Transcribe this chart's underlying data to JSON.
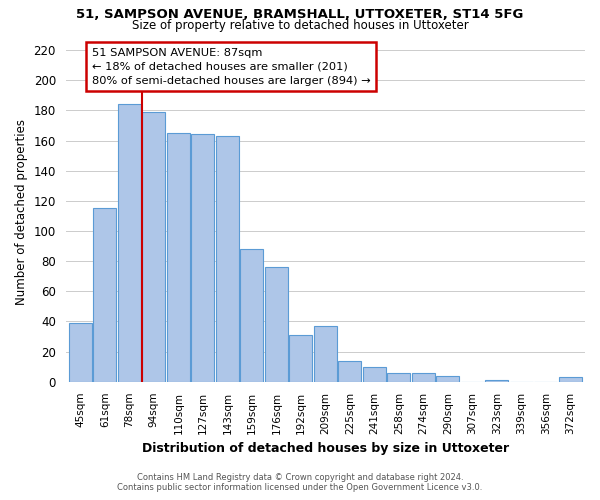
{
  "title1": "51, SAMPSON AVENUE, BRAMSHALL, UTTOXETER, ST14 5FG",
  "title2": "Size of property relative to detached houses in Uttoxeter",
  "xlabel": "Distribution of detached houses by size in Uttoxeter",
  "ylabel": "Number of detached properties",
  "bar_labels": [
    "45sqm",
    "61sqm",
    "78sqm",
    "94sqm",
    "110sqm",
    "127sqm",
    "143sqm",
    "159sqm",
    "176sqm",
    "192sqm",
    "209sqm",
    "225sqm",
    "241sqm",
    "258sqm",
    "274sqm",
    "290sqm",
    "307sqm",
    "323sqm",
    "339sqm",
    "356sqm",
    "372sqm"
  ],
  "bar_values": [
    39,
    115,
    184,
    179,
    165,
    164,
    163,
    88,
    76,
    31,
    37,
    14,
    10,
    6,
    6,
    4,
    0,
    1,
    0,
    0,
    3
  ],
  "bar_color": "#aec6e8",
  "bar_edge_color": "#5b9bd5",
  "annotation_text1": "51 SAMPSON AVENUE: 87sqm",
  "annotation_text2": "← 18% of detached houses are smaller (201)",
  "annotation_text3": "80% of semi-detached houses are larger (894) →",
  "annotation_box_color": "#ffffff",
  "annotation_box_edge": "#cc0000",
  "line_color": "#cc0000",
  "ylim": [
    0,
    225
  ],
  "yticks": [
    0,
    20,
    40,
    60,
    80,
    100,
    120,
    140,
    160,
    180,
    200,
    220
  ],
  "footer1": "Contains HM Land Registry data © Crown copyright and database right 2024.",
  "footer2": "Contains public sector information licensed under the Open Government Licence v3.0.",
  "background_color": "#ffffff",
  "grid_color": "#cccccc"
}
